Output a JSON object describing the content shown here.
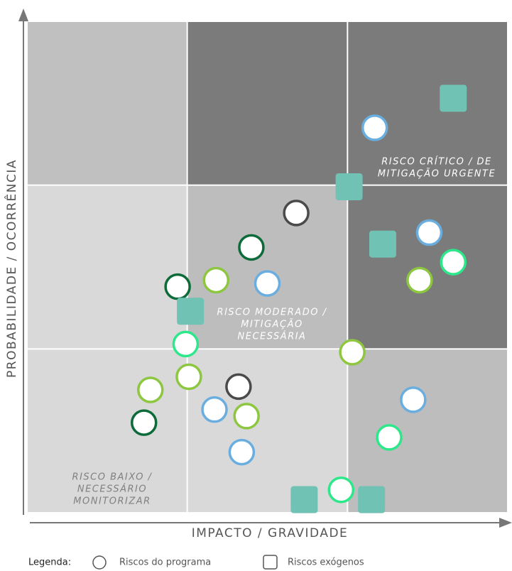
{
  "chart_data": {
    "type": "scatter",
    "xlabel": "IMPACTO / GRAVIDADE",
    "ylabel": "PROBABILIDADE / OCORRÊNCIA",
    "xlim": [
      0,
      3
    ],
    "ylim": [
      0,
      3
    ],
    "cell_colors": [
      [
        "#c0c0c0",
        "#7b7b7b",
        "#7b7b7b"
      ],
      [
        "#d9d9d9",
        "#bdbdbd",
        "#7b7b7b"
      ],
      [
        "#d9d9d9",
        "#d9d9d9",
        "#bdbdbd"
      ]
    ],
    "zones": [
      {
        "lines": [
          "RISCO CRÍTICO / DE",
          "MITIGAÇÃO URGENTE"
        ],
        "color": "#ffffff"
      },
      {
        "lines": [
          "RISCO MODERADO /",
          "MITIGAÇÃO",
          "NECESSÁRIA"
        ],
        "color": "#ffffff"
      },
      {
        "lines": [
          "RISCO BAIXO /",
          "NECESSÁRIO",
          "MONITORIZAR"
        ],
        "color": "#808080"
      }
    ],
    "legend_title": "Legenda:",
    "series": [
      {
        "name": "Riscos do programa",
        "marker": "circle",
        "x": [
          2.17,
          1.68,
          1.4,
          2.51,
          2.66,
          2.45,
          0.94,
          1.18,
          1.5,
          0.99,
          2.03,
          1.01,
          0.77,
          1.32,
          1.17,
          1.37,
          0.73,
          2.41,
          2.26,
          1.34,
          1.96
        ],
        "values": [
          2.35,
          1.83,
          1.62,
          1.71,
          1.53,
          1.42,
          1.38,
          1.42,
          1.4,
          1.03,
          0.98,
          0.83,
          0.75,
          0.77,
          0.63,
          0.59,
          0.55,
          0.69,
          0.46,
          0.37,
          0.14
        ],
        "colors": [
          "#6aaee0",
          "#4a4a4a",
          "#0d6b3a",
          "#6aaee0",
          "#2de88a",
          "#8dc63f",
          "#0d6b3a",
          "#8dc63f",
          "#6aaee0",
          "#2de88a",
          "#8dc63f",
          "#8dc63f",
          "#8dc63f",
          "#4a4a4a",
          "#6aaee0",
          "#8dc63f",
          "#0d6b3a",
          "#6aaee0",
          "#2de88a",
          "#6aaee0",
          "#2de88a"
        ]
      },
      {
        "name": "Riscos exógenos",
        "marker": "square",
        "color": "#6fc2b4",
        "x": [
          2.66,
          2.01,
          2.22,
          1.02,
          1.73,
          2.15
        ],
        "values": [
          2.53,
          1.99,
          1.64,
          1.23,
          0.08,
          0.08
        ]
      }
    ]
  }
}
